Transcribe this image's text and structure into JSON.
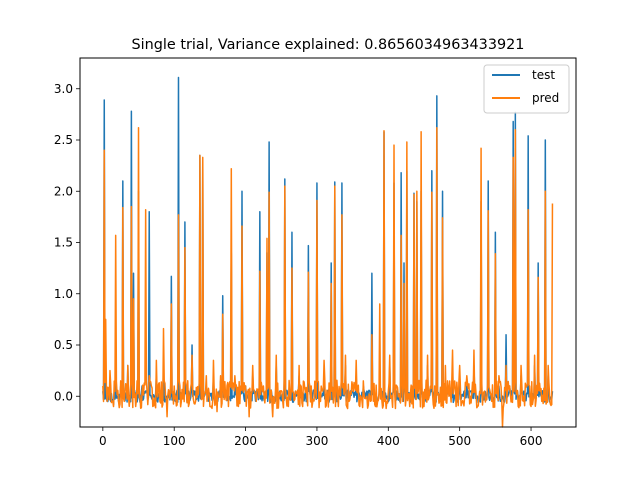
{
  "chart_data": {
    "type": "line",
    "title": "Single trial, Variance explained: 0.8656034963433921",
    "xlabel": "",
    "ylabel": "",
    "xlim": [
      -32,
      663
    ],
    "ylim": [
      -0.3,
      3.3
    ],
    "xticks": [
      0,
      100,
      200,
      300,
      400,
      500,
      600
    ],
    "yticks": [
      0.0,
      0.5,
      1.0,
      1.5,
      2.0,
      2.5,
      3.0
    ],
    "xtick_labels": [
      "0",
      "100",
      "200",
      "300",
      "400",
      "500",
      "600"
    ],
    "ytick_labels": [
      "0.0",
      "0.5",
      "1.0",
      "1.5",
      "2.0",
      "2.5",
      "3.0"
    ],
    "grid": false,
    "legend": "top-right",
    "series": [
      {
        "name": "test",
        "color": "#1f77b4",
        "peaks": [
          [
            0,
            0.05
          ],
          [
            2,
            2.89
          ],
          [
            4,
            0.3
          ],
          [
            6,
            -0.05
          ],
          [
            10,
            0.1
          ],
          [
            15,
            -0.08
          ],
          [
            18,
            0.2
          ],
          [
            22,
            -0.05
          ],
          [
            25,
            0.1
          ],
          [
            28,
            2.1
          ],
          [
            30,
            0.05
          ],
          [
            35,
            0.3
          ],
          [
            40,
            2.78
          ],
          [
            43,
            1.2
          ],
          [
            46,
            0.0
          ],
          [
            50,
            2.0
          ],
          [
            55,
            0.1
          ],
          [
            60,
            0.05
          ],
          [
            65,
            1.8
          ],
          [
            70,
            0.0
          ],
          [
            75,
            0.2
          ],
          [
            80,
            0.05
          ],
          [
            85,
            0.3
          ],
          [
            90,
            0.0
          ],
          [
            96,
            1.17
          ],
          [
            100,
            0.05
          ],
          [
            106,
            3.11
          ],
          [
            110,
            0.0
          ],
          [
            115,
            1.7
          ],
          [
            120,
            0.05
          ],
          [
            125,
            0.5
          ],
          [
            130,
            0.0
          ],
          [
            136,
            2.35
          ],
          [
            140,
            2.3
          ],
          [
            145,
            0.1
          ],
          [
            150,
            0.0
          ],
          [
            155,
            0.2
          ],
          [
            160,
            0.0
          ],
          [
            165,
            0.15
          ],
          [
            168,
            0.98
          ],
          [
            172,
            0.05
          ],
          [
            176,
            0.0
          ],
          [
            180,
            1.4
          ],
          [
            185,
            0.1
          ],
          [
            190,
            0.0
          ],
          [
            195,
            2.0
          ],
          [
            200,
            0.1
          ],
          [
            205,
            0.0
          ],
          [
            210,
            0.2
          ],
          [
            215,
            0.05
          ],
          [
            220,
            1.8
          ],
          [
            225,
            0.0
          ],
          [
            230,
            1.4
          ],
          [
            233,
            2.48
          ],
          [
            238,
            0.0
          ],
          [
            243,
            0.3
          ],
          [
            248,
            0.05
          ],
          [
            255,
            2.12
          ],
          [
            260,
            0.0
          ],
          [
            265,
            1.6
          ],
          [
            270,
            0.05
          ],
          [
            275,
            0.2
          ],
          [
            280,
            0.0
          ],
          [
            288,
            1.47
          ],
          [
            292,
            0.05
          ],
          [
            300,
            2.08
          ],
          [
            305,
            0.0
          ],
          [
            310,
            0.2
          ],
          [
            315,
            0.05
          ],
          [
            320,
            1.3
          ],
          [
            325,
            2.09
          ],
          [
            330,
            0.0
          ],
          [
            335,
            2.08
          ],
          [
            340,
            0.3
          ],
          [
            345,
            0.0
          ],
          [
            350,
            0.05
          ],
          [
            355,
            0.2
          ],
          [
            360,
            0.0
          ],
          [
            365,
            0.1
          ],
          [
            370,
            0.05
          ],
          [
            377,
            1.2
          ],
          [
            382,
            0.0
          ],
          [
            388,
            0.2
          ],
          [
            394,
            2.58
          ],
          [
            398,
            0.0
          ],
          [
            402,
            0.3
          ],
          [
            408,
            2.08
          ],
          [
            412,
            0.05
          ],
          [
            418,
            2.18
          ],
          [
            422,
            1.3
          ],
          [
            426,
            2.2
          ],
          [
            430,
            0.0
          ],
          [
            436,
            1.98
          ],
          [
            440,
            1.9
          ],
          [
            446,
            2.0
          ],
          [
            450,
            0.0
          ],
          [
            455,
            0.3
          ],
          [
            461,
            2.2
          ],
          [
            465,
            0.05
          ],
          [
            468,
            2.93
          ],
          [
            472,
            0.0
          ],
          [
            476,
            2.0
          ],
          [
            480,
            0.1
          ],
          [
            485,
            0.05
          ],
          [
            490,
            0.3
          ],
          [
            495,
            0.0
          ],
          [
            500,
            0.2
          ],
          [
            505,
            0.0
          ],
          [
            510,
            0.1
          ],
          [
            515,
            0.05
          ],
          [
            520,
            0.3
          ],
          [
            525,
            0.0
          ],
          [
            530,
            1.9
          ],
          [
            535,
            0.05
          ],
          [
            540,
            2.1
          ],
          [
            545,
            0.0
          ],
          [
            550,
            1.6
          ],
          [
            555,
            0.1
          ],
          [
            560,
            0.0
          ],
          [
            565,
            0.6
          ],
          [
            570,
            0.1
          ],
          [
            575,
            2.68
          ],
          [
            578,
            2.77
          ],
          [
            582,
            0.0
          ],
          [
            586,
            0.2
          ],
          [
            590,
            0.05
          ],
          [
            596,
            2.54
          ],
          [
            600,
            0.0
          ],
          [
            605,
            0.3
          ],
          [
            610,
            1.3
          ],
          [
            615,
            0.0
          ],
          [
            620,
            2.5
          ],
          [
            624,
            0.2
          ],
          [
            630,
            0.05
          ]
        ]
      },
      {
        "name": "pred",
        "color": "#ff7f0e",
        "peaks": [
          [
            0,
            0.1
          ],
          [
            2,
            2.4
          ],
          [
            4,
            0.75
          ],
          [
            6,
            -0.05
          ],
          [
            10,
            0.25
          ],
          [
            15,
            -0.1
          ],
          [
            18,
            1.57
          ],
          [
            22,
            -0.05
          ],
          [
            25,
            0.15
          ],
          [
            28,
            1.84
          ],
          [
            30,
            -0.05
          ],
          [
            35,
            0.3
          ],
          [
            40,
            1.85
          ],
          [
            43,
            0.95
          ],
          [
            46,
            -0.1
          ],
          [
            50,
            2.62
          ],
          [
            55,
            0.05
          ],
          [
            60,
            1.82
          ],
          [
            65,
            0.2
          ],
          [
            70,
            -0.1
          ],
          [
            75,
            0.35
          ],
          [
            80,
            -0.05
          ],
          [
            85,
            0.66
          ],
          [
            90,
            -0.2
          ],
          [
            96,
            0.9
          ],
          [
            100,
            0.1
          ],
          [
            106,
            1.77
          ],
          [
            110,
            -0.05
          ],
          [
            115,
            1.45
          ],
          [
            120,
            -0.1
          ],
          [
            125,
            0.4
          ],
          [
            130,
            -0.05
          ],
          [
            136,
            2.35
          ],
          [
            140,
            2.33
          ],
          [
            145,
            0.2
          ],
          [
            150,
            -0.1
          ],
          [
            155,
            0.35
          ],
          [
            160,
            -0.15
          ],
          [
            165,
            0.2
          ],
          [
            168,
            0.8
          ],
          [
            172,
            0.0
          ],
          [
            176,
            -0.1
          ],
          [
            180,
            2.22
          ],
          [
            185,
            0.2
          ],
          [
            190,
            -0.1
          ],
          [
            195,
            1.66
          ],
          [
            200,
            0.1
          ],
          [
            205,
            -0.2
          ],
          [
            210,
            0.3
          ],
          [
            215,
            -0.05
          ],
          [
            220,
            1.22
          ],
          [
            225,
            0.1
          ],
          [
            230,
            1.54
          ],
          [
            233,
            1.99
          ],
          [
            238,
            -0.2
          ],
          [
            243,
            0.4
          ],
          [
            248,
            0.0
          ],
          [
            255,
            2.05
          ],
          [
            260,
            -0.1
          ],
          [
            265,
            1.25
          ],
          [
            270,
            0.05
          ],
          [
            275,
            0.3
          ],
          [
            280,
            -0.1
          ],
          [
            288,
            1.21
          ],
          [
            292,
            0.1
          ],
          [
            300,
            1.91
          ],
          [
            305,
            -0.05
          ],
          [
            310,
            0.35
          ],
          [
            315,
            0.0
          ],
          [
            320,
            1.1
          ],
          [
            325,
            2.05
          ],
          [
            330,
            -0.1
          ],
          [
            335,
            1.77
          ],
          [
            340,
            0.4
          ],
          [
            345,
            -0.05
          ],
          [
            350,
            0.1
          ],
          [
            355,
            0.35
          ],
          [
            360,
            -0.1
          ],
          [
            365,
            0.15
          ],
          [
            370,
            0.0
          ],
          [
            377,
            0.6
          ],
          [
            382,
            -0.1
          ],
          [
            388,
            0.9
          ],
          [
            394,
            2.59
          ],
          [
            398,
            -0.05
          ],
          [
            402,
            0.4
          ],
          [
            408,
            2.45
          ],
          [
            412,
            0.1
          ],
          [
            418,
            1.57
          ],
          [
            422,
            1.1
          ],
          [
            426,
            2.48
          ],
          [
            430,
            -0.1
          ],
          [
            436,
            1.97
          ],
          [
            440,
            2.0
          ],
          [
            446,
            2.58
          ],
          [
            450,
            -0.1
          ],
          [
            455,
            0.4
          ],
          [
            461,
            1.99
          ],
          [
            465,
            0.1
          ],
          [
            468,
            2.62
          ],
          [
            472,
            -0.05
          ],
          [
            476,
            1.74
          ],
          [
            480,
            0.3
          ],
          [
            485,
            0.0
          ],
          [
            490,
            0.45
          ],
          [
            495,
            -0.1
          ],
          [
            500,
            0.3
          ],
          [
            505,
            -0.05
          ],
          [
            510,
            0.2
          ],
          [
            515,
            0.0
          ],
          [
            520,
            0.45
          ],
          [
            525,
            -0.1
          ],
          [
            530,
            2.42
          ],
          [
            535,
            0.05
          ],
          [
            540,
            1.81
          ],
          [
            545,
            -0.05
          ],
          [
            550,
            1.39
          ],
          [
            555,
            0.2
          ],
          [
            560,
            -0.3
          ],
          [
            565,
            0.3
          ],
          [
            570,
            0.1
          ],
          [
            575,
            2.33
          ],
          [
            578,
            2.6
          ],
          [
            582,
            -0.1
          ],
          [
            586,
            0.3
          ],
          [
            590,
            0.0
          ],
          [
            596,
            1.82
          ],
          [
            600,
            -0.1
          ],
          [
            605,
            0.4
          ],
          [
            610,
            1.16
          ],
          [
            615,
            -0.05
          ],
          [
            620,
            2.0
          ],
          [
            624,
            0.3
          ],
          [
            630,
            1.88
          ]
        ]
      }
    ]
  }
}
